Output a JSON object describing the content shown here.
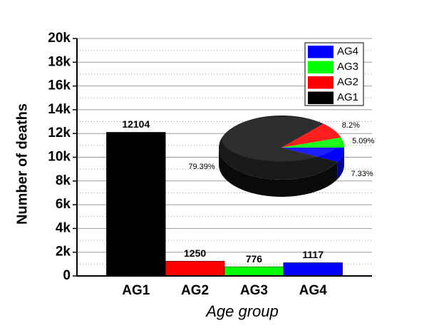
{
  "chart_data": [
    {
      "type": "bar",
      "xlabel": "Age group",
      "ylabel": "Number of deaths",
      "categories": [
        "AG1",
        "AG2",
        "AG3",
        "AG4"
      ],
      "values": [
        12104,
        1250,
        776,
        1117
      ],
      "colors": [
        "#000000",
        "#ff0000",
        "#00ff00",
        "#0000ff"
      ],
      "ylim": [
        0,
        20000
      ],
      "yticks": [
        0,
        {
          "value": 2000,
          "label": "2k"
        },
        {
          "value": 4000,
          "label": "4k"
        },
        {
          "value": 6000,
          "label": "6k"
        },
        {
          "value": 8000,
          "label": "8k"
        },
        {
          "value": 10000,
          "label": "10k"
        },
        {
          "value": 12000,
          "label": "12k"
        },
        {
          "value": 14000,
          "label": "14k"
        },
        {
          "value": 16000,
          "label": "16k"
        },
        {
          "value": 18000,
          "label": "18k"
        },
        {
          "value": 20000,
          "label": "20k"
        }
      ],
      "grid": true,
      "legend": "upper right"
    },
    {
      "type": "pie",
      "values": [
        79.39,
        8.2,
        5.09,
        7.33
      ],
      "value_labels": [
        "79.39%",
        "8.2%",
        "5.09%",
        "7.33%"
      ],
      "colors": [
        "#1a1a1a",
        "#ff0000",
        "#00ff00",
        "#0000ff"
      ]
    }
  ]
}
